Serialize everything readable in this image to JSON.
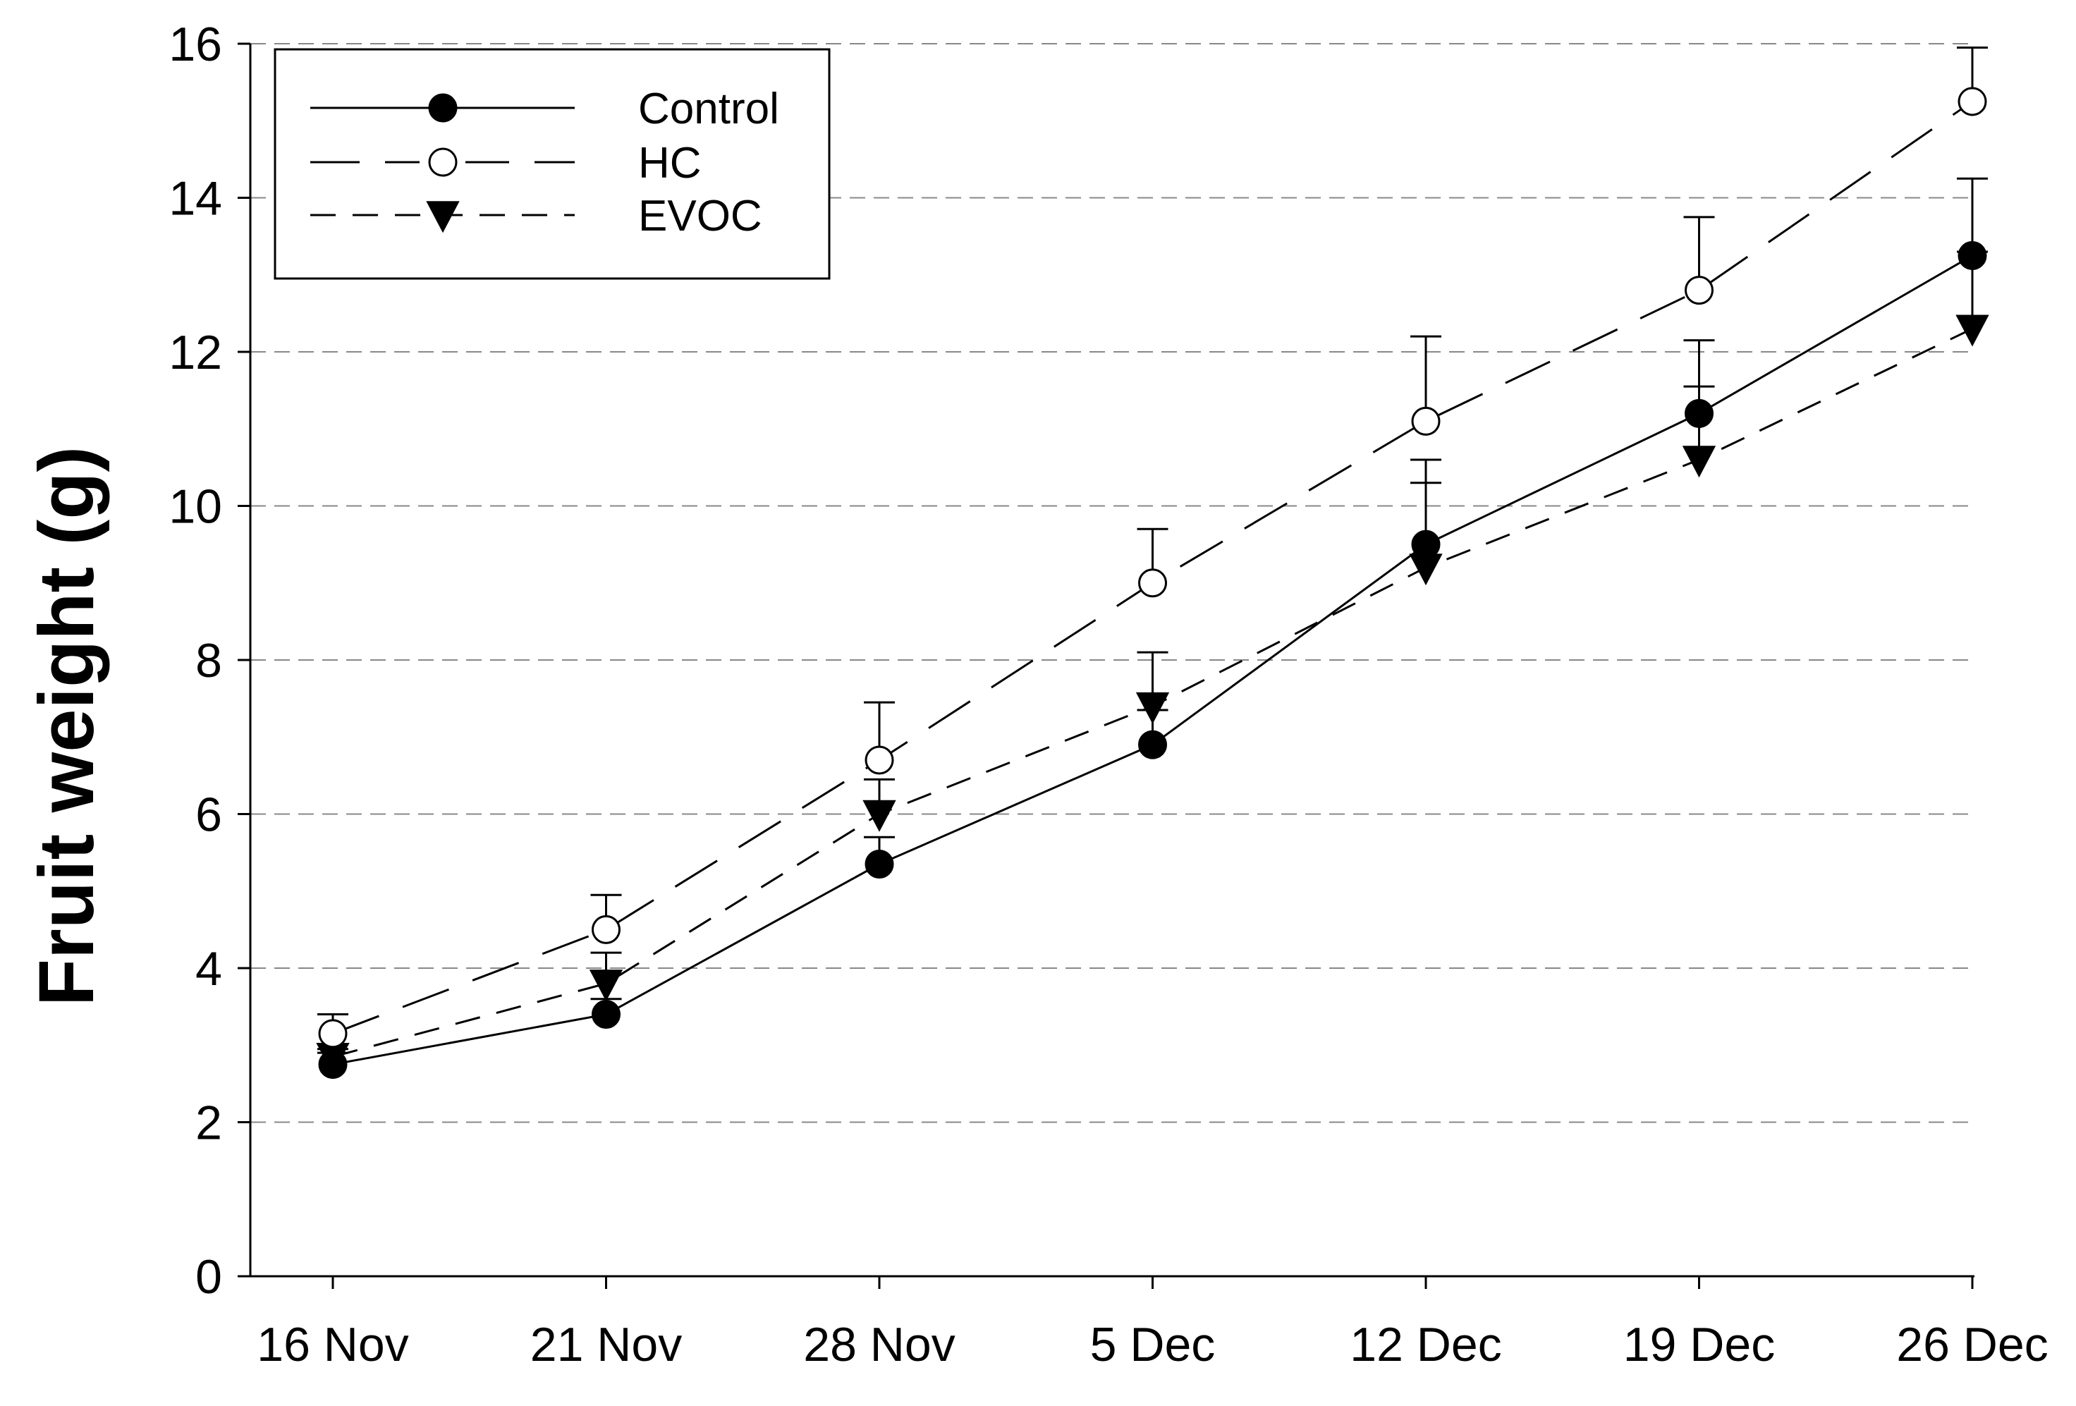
{
  "chart_data": {
    "type": "line",
    "title": "",
    "xlabel": "",
    "ylabel": "Fruit weight (g)",
    "categories": [
      "16 Nov",
      "21 Nov",
      "28 Nov",
      "5 Dec",
      "12 Dec",
      "19 Dec",
      "26 Dec"
    ],
    "ylim": [
      0,
      16
    ],
    "yticks": [
      0,
      2,
      4,
      6,
      8,
      10,
      12,
      14,
      16
    ],
    "grid": "horizontal dashed",
    "legend_position": "top-left",
    "series": [
      {
        "name": "Control",
        "marker": "filled-circle",
        "line": "solid",
        "values": [
          2.75,
          3.4,
          5.35,
          6.9,
          9.5,
          11.2,
          13.25
        ],
        "errors": [
          0.15,
          0.2,
          0.35,
          0.45,
          1.1,
          0.95,
          1.0
        ]
      },
      {
        "name": "HC",
        "marker": "open-circle",
        "line": "long-dash",
        "values": [
          3.15,
          4.5,
          6.7,
          9.0,
          11.1,
          12.8,
          15.25
        ],
        "errors": [
          0.25,
          0.45,
          0.75,
          0.7,
          1.1,
          0.95,
          0.7
        ]
      },
      {
        "name": "EVOC",
        "marker": "filled-triangle-down",
        "line": "short-dash",
        "values": [
          2.85,
          3.8,
          6.0,
          7.4,
          9.2,
          10.6,
          12.3
        ],
        "errors": [
          0.1,
          0.4,
          0.45,
          0.7,
          1.1,
          0.95,
          1.0
        ]
      }
    ]
  }
}
